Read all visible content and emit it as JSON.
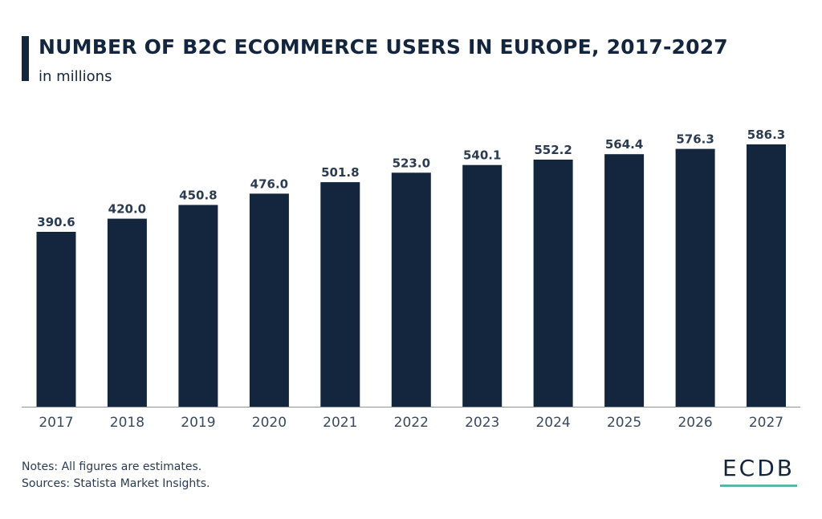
{
  "header": {
    "title": "NUMBER OF B2C ECOMMERCE USERS IN EUROPE, 2017-2027",
    "subtitle": "in millions"
  },
  "footer": {
    "notes": "Notes: All figures are estimates.",
    "sources": "Sources: Statista Market Insights.",
    "logo": "ECDB"
  },
  "colors": {
    "bar": "#13263e",
    "text": "#13263e",
    "accent": "#5fb3a8"
  },
  "chart_data": {
    "type": "bar",
    "title": "NUMBER OF B2C ECOMMERCE USERS IN EUROPE, 2017-2027",
    "subtitle": "in millions",
    "categories": [
      "2017",
      "2018",
      "2019",
      "2020",
      "2021",
      "2022",
      "2023",
      "2024",
      "2025",
      "2026",
      "2027"
    ],
    "values": [
      390.6,
      420.0,
      450.8,
      476.0,
      501.8,
      523.0,
      540.1,
      552.2,
      564.4,
      576.3,
      586.3
    ],
    "value_labels": [
      "390.6",
      "420.0",
      "450.8",
      "476.0",
      "501.8",
      "523.0",
      "540.1",
      "552.2",
      "564.4",
      "576.3",
      "586.3"
    ],
    "xlabel": "",
    "ylabel": "",
    "grid": false,
    "legend": "none"
  }
}
